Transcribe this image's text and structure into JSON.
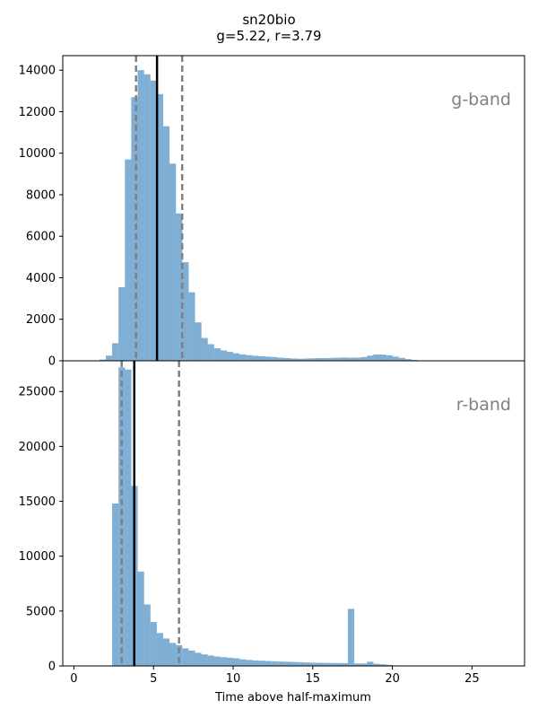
{
  "chart_data": {
    "type": "bar",
    "title": "sn20bio",
    "subtitle": "g=5.22, r=3.79",
    "xlabel": "Time above half-maximum",
    "xlim": [
      -0.7,
      28.3
    ],
    "xticks": [
      0,
      5,
      10,
      15,
      20,
      25
    ],
    "bin_width": 0.4,
    "bar_color": "#7fafd5",
    "median_color": "#000000",
    "interval_color": "#808080",
    "panels": [
      {
        "band": "g-band",
        "ylim": [
          0,
          14700
        ],
        "yticks": [
          0,
          2000,
          4000,
          6000,
          8000,
          10000,
          12000,
          14000
        ],
        "median": 5.22,
        "interval": [
          3.9,
          6.8
        ],
        "bins": [
          [
            1.6,
            60
          ],
          [
            2.0,
            250
          ],
          [
            2.4,
            850
          ],
          [
            2.8,
            3550
          ],
          [
            3.2,
            9700
          ],
          [
            3.6,
            12700
          ],
          [
            4.0,
            14000
          ],
          [
            4.4,
            13800
          ],
          [
            4.8,
            13500
          ],
          [
            5.2,
            12850
          ],
          [
            5.6,
            11300
          ],
          [
            6.0,
            9500
          ],
          [
            6.4,
            7100
          ],
          [
            6.8,
            4750
          ],
          [
            7.2,
            3300
          ],
          [
            7.6,
            1850
          ],
          [
            8.0,
            1100
          ],
          [
            8.4,
            800
          ],
          [
            8.8,
            600
          ],
          [
            9.2,
            500
          ],
          [
            9.6,
            430
          ],
          [
            10.0,
            360
          ],
          [
            10.4,
            310
          ],
          [
            10.8,
            270
          ],
          [
            11.2,
            240
          ],
          [
            11.6,
            220
          ],
          [
            12.0,
            200
          ],
          [
            12.4,
            180
          ],
          [
            12.8,
            150
          ],
          [
            13.2,
            130
          ],
          [
            13.6,
            110
          ],
          [
            14.0,
            100
          ],
          [
            14.4,
            110
          ],
          [
            14.8,
            120
          ],
          [
            15.2,
            130
          ],
          [
            15.6,
            130
          ],
          [
            16.0,
            140
          ],
          [
            16.4,
            150
          ],
          [
            16.8,
            160
          ],
          [
            17.2,
            150
          ],
          [
            17.6,
            150
          ],
          [
            18.0,
            180
          ],
          [
            18.4,
            250
          ],
          [
            18.8,
            300
          ],
          [
            19.2,
            300
          ],
          [
            19.6,
            260
          ],
          [
            20.0,
            200
          ],
          [
            20.4,
            140
          ],
          [
            20.8,
            80
          ],
          [
            21.2,
            40
          ]
        ]
      },
      {
        "band": "r-band",
        "ylim": [
          0,
          27800
        ],
        "yticks": [
          0,
          5000,
          10000,
          15000,
          20000,
          25000
        ],
        "median": 3.79,
        "interval": [
          3.0,
          6.6
        ],
        "bins": [
          [
            2.4,
            14800
          ],
          [
            2.8,
            27200
          ],
          [
            3.2,
            27000
          ],
          [
            3.6,
            16400
          ],
          [
            4.0,
            8600
          ],
          [
            4.4,
            5600
          ],
          [
            4.8,
            4000
          ],
          [
            5.2,
            3000
          ],
          [
            5.6,
            2500
          ],
          [
            6.0,
            2100
          ],
          [
            6.4,
            1900
          ],
          [
            6.8,
            1600
          ],
          [
            7.2,
            1400
          ],
          [
            7.6,
            1200
          ],
          [
            8.0,
            1050
          ],
          [
            8.4,
            950
          ],
          [
            8.8,
            860
          ],
          [
            9.2,
            800
          ],
          [
            9.6,
            750
          ],
          [
            10.0,
            700
          ],
          [
            10.4,
            600
          ],
          [
            10.8,
            550
          ],
          [
            11.2,
            500
          ],
          [
            11.6,
            480
          ],
          [
            12.0,
            450
          ],
          [
            12.4,
            420
          ],
          [
            12.8,
            400
          ],
          [
            13.2,
            380
          ],
          [
            13.6,
            360
          ],
          [
            14.0,
            340
          ],
          [
            14.4,
            320
          ],
          [
            14.8,
            300
          ],
          [
            15.2,
            290
          ],
          [
            15.6,
            280
          ],
          [
            16.0,
            270
          ],
          [
            16.4,
            260
          ],
          [
            16.8,
            250
          ],
          [
            17.2,
            5200
          ],
          [
            17.6,
            230
          ],
          [
            18.0,
            220
          ],
          [
            18.4,
            380
          ],
          [
            18.8,
            200
          ],
          [
            19.2,
            150
          ],
          [
            19.6,
            100
          ],
          [
            20.0,
            50
          ]
        ]
      }
    ]
  }
}
